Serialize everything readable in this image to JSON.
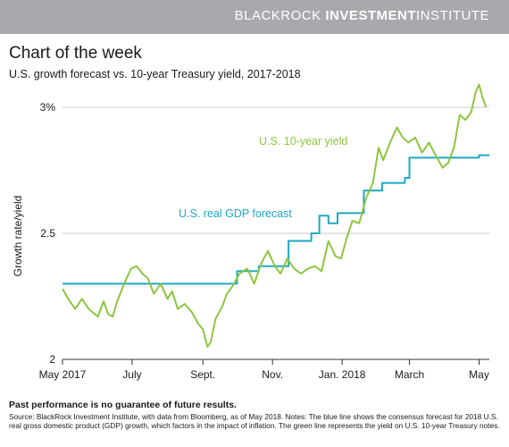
{
  "brand": {
    "part1": "BLACKROCK",
    "part2": "INVESTMENT",
    "part3": "INSTITUTE"
  },
  "title": "Chart of the week",
  "subtitle": "U.S. growth forecast vs. 10-year Treasury yield, 2017-2018",
  "footnote": "Past performance is no guarantee of future results.",
  "source": "Source: BlackRock Investment Institute, with data from Bloomberg, as of May 2018. Notes: The blue line shows the consensus forecast for 2018 U.S. real gross domestic product (GDP) growth, which factors in the impact of inflation. The green line represents the yield on U.S. 10-year Treasury notes.",
  "colors": {
    "yield": "#8dc63f",
    "gdp": "#1fa7c7",
    "axis": "#333333",
    "grid": "#c8c8c8",
    "brand_bar": "#a7a9ac"
  },
  "chart_data": {
    "type": "line",
    "xlabel": "",
    "ylabel": "Growth rate/yield",
    "xlim": [
      "2017-05-01",
      "2018-05-10"
    ],
    "ylim": [
      2.0,
      3.0
    ],
    "y_ticks": [
      {
        "value": 3.0,
        "label": "3%"
      },
      {
        "value": 2.5,
        "label": "2.5"
      },
      {
        "value": 2.0,
        "label": "2"
      }
    ],
    "x_ticks": [
      {
        "date": "2017-05-01",
        "label": "May 2017"
      },
      {
        "date": "2017-07-01",
        "label": "July"
      },
      {
        "date": "2017-09-01",
        "label": "Sept."
      },
      {
        "date": "2017-11-01",
        "label": "Nov."
      },
      {
        "date": "2018-01-01",
        "label": "Jan. 2018"
      },
      {
        "date": "2018-03-01",
        "label": "March"
      },
      {
        "date": "2018-05-01",
        "label": "May"
      }
    ],
    "grid": "horizontal",
    "series": [
      {
        "name": "U.S. real GDP forecast",
        "color": "#1fa7c7",
        "step": true,
        "points": [
          [
            "2017-05-01",
            2.3
          ],
          [
            "2017-10-01",
            2.35
          ],
          [
            "2017-10-20",
            2.37
          ],
          [
            "2017-11-15",
            2.47
          ],
          [
            "2017-12-05",
            2.5
          ],
          [
            "2017-12-12",
            2.57
          ],
          [
            "2017-12-20",
            2.54
          ],
          [
            "2017-12-28",
            2.58
          ],
          [
            "2018-01-20",
            2.67
          ],
          [
            "2018-02-05",
            2.7
          ],
          [
            "2018-02-25",
            2.72
          ],
          [
            "2018-03-01",
            2.8
          ],
          [
            "2018-05-01",
            2.81
          ]
        ]
      },
      {
        "name": "U.S. 10-year yield",
        "color": "#8dc63f",
        "step": false,
        "points": [
          [
            "2017-05-01",
            2.28
          ],
          [
            "2017-05-06",
            2.24
          ],
          [
            "2017-05-12",
            2.2
          ],
          [
            "2017-05-18",
            2.24
          ],
          [
            "2017-05-24",
            2.2
          ],
          [
            "2017-06-01",
            2.17
          ],
          [
            "2017-06-06",
            2.23
          ],
          [
            "2017-06-10",
            2.18
          ],
          [
            "2017-06-14",
            2.17
          ],
          [
            "2017-06-18",
            2.23
          ],
          [
            "2017-06-24",
            2.3
          ],
          [
            "2017-06-30",
            2.36
          ],
          [
            "2017-07-05",
            2.37
          ],
          [
            "2017-07-10",
            2.34
          ],
          [
            "2017-07-15",
            2.32
          ],
          [
            "2017-07-20",
            2.26
          ],
          [
            "2017-07-26",
            2.3
          ],
          [
            "2017-08-01",
            2.24
          ],
          [
            "2017-08-05",
            2.27
          ],
          [
            "2017-08-10",
            2.2
          ],
          [
            "2017-08-16",
            2.22
          ],
          [
            "2017-08-22",
            2.19
          ],
          [
            "2017-08-28",
            2.14
          ],
          [
            "2017-09-01",
            2.12
          ],
          [
            "2017-09-05",
            2.05
          ],
          [
            "2017-09-08",
            2.07
          ],
          [
            "2017-09-12",
            2.16
          ],
          [
            "2017-09-18",
            2.21
          ],
          [
            "2017-09-22",
            2.26
          ],
          [
            "2017-09-27",
            2.29
          ],
          [
            "2017-10-03",
            2.34
          ],
          [
            "2017-10-10",
            2.36
          ],
          [
            "2017-10-16",
            2.3
          ],
          [
            "2017-10-22",
            2.38
          ],
          [
            "2017-10-28",
            2.43
          ],
          [
            "2017-11-03",
            2.37
          ],
          [
            "2017-11-08",
            2.34
          ],
          [
            "2017-11-14",
            2.4
          ],
          [
            "2017-11-20",
            2.36
          ],
          [
            "2017-11-26",
            2.34
          ],
          [
            "2017-12-02",
            2.36
          ],
          [
            "2017-12-08",
            2.37
          ],
          [
            "2017-12-14",
            2.35
          ],
          [
            "2017-12-20",
            2.47
          ],
          [
            "2017-12-26",
            2.41
          ],
          [
            "2017-12-31",
            2.4
          ],
          [
            "2018-01-05",
            2.48
          ],
          [
            "2018-01-10",
            2.55
          ],
          [
            "2018-01-16",
            2.54
          ],
          [
            "2018-01-22",
            2.64
          ],
          [
            "2018-01-28",
            2.7
          ],
          [
            "2018-02-02",
            2.84
          ],
          [
            "2018-02-06",
            2.79
          ],
          [
            "2018-02-12",
            2.86
          ],
          [
            "2018-02-18",
            2.92
          ],
          [
            "2018-02-23",
            2.88
          ],
          [
            "2018-02-28",
            2.86
          ],
          [
            "2018-03-06",
            2.88
          ],
          [
            "2018-03-12",
            2.82
          ],
          [
            "2018-03-18",
            2.86
          ],
          [
            "2018-03-24",
            2.81
          ],
          [
            "2018-03-30",
            2.76
          ],
          [
            "2018-04-04",
            2.78
          ],
          [
            "2018-04-09",
            2.84
          ],
          [
            "2018-04-14",
            2.97
          ],
          [
            "2018-04-19",
            2.95
          ],
          [
            "2018-04-24",
            2.98
          ],
          [
            "2018-04-28",
            3.06
          ],
          [
            "2018-05-01",
            3.09
          ],
          [
            "2018-05-04",
            3.04
          ],
          [
            "2018-05-07",
            3.0
          ]
        ]
      }
    ],
    "annotations": [
      {
        "text": "U.S. 10-year yield",
        "series": "U.S. 10-year yield"
      },
      {
        "text": "U.S. real GDP forecast",
        "series": "U.S. real GDP forecast"
      }
    ]
  }
}
